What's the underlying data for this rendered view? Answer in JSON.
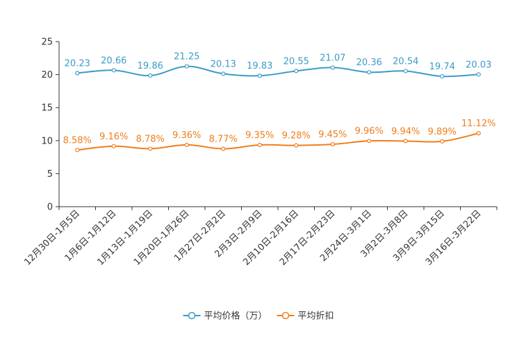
{
  "chart_data": {
    "type": "line",
    "title": "",
    "xlabel": "",
    "ylabel": "",
    "ylim": [
      0,
      25
    ],
    "yticks": [
      0,
      5,
      10,
      15,
      20,
      25
    ],
    "categories": [
      "12月30日-1月5日",
      "1月6日-1月12日",
      "1月13日-1月19日",
      "1月20日-1月26日",
      "1月27日-2月2日",
      "2月3日-2月9日",
      "2月10日-2月16日",
      "2月17日-2月23日",
      "2月24日-3月1日",
      "3月2日-3月8日",
      "3月9日-3月15日",
      "3月16日-3月22日"
    ],
    "series": [
      {
        "name": "平均价格（万）",
        "color": "#3a9bc8",
        "values": [
          20.23,
          20.66,
          19.86,
          21.25,
          20.13,
          19.83,
          20.55,
          21.07,
          20.36,
          20.54,
          19.74,
          20.03
        ],
        "labels": [
          "20.23",
          "20.66",
          "19.86",
          "21.25",
          "20.13",
          "19.83",
          "20.55",
          "21.07",
          "20.36",
          "20.54",
          "19.74",
          "20.03"
        ]
      },
      {
        "name": "平均折扣",
        "color": "#f07d1a",
        "values": [
          8.58,
          9.16,
          8.78,
          9.36,
          8.77,
          9.35,
          9.28,
          9.45,
          9.96,
          9.94,
          9.89,
          11.12
        ],
        "labels": [
          "8.58%",
          "9.16%",
          "8.78%",
          "9.36%",
          "8.77%",
          "9.35%",
          "9.28%",
          "9.45%",
          "9.96%",
          "9.94%",
          "9.89%",
          "11.12%"
        ]
      }
    ],
    "legend_position": "bottom-center",
    "grid": false
  }
}
